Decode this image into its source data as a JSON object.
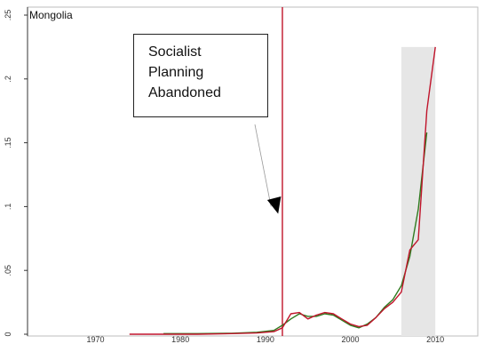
{
  "chart_data": {
    "type": "line",
    "title": "Mongolia",
    "xlabel": "",
    "ylabel": "",
    "xlim": [
      1962,
      2015
    ],
    "ylim": [
      0,
      0.25
    ],
    "x_ticks": [
      1970,
      1980,
      1990,
      2000,
      2010
    ],
    "y_ticks": [
      0,
      0.05,
      0.1,
      0.15,
      0.2,
      0.25
    ],
    "y_tick_labels": [
      "0",
      ".05",
      ".1",
      ".15",
      ".2",
      ".25"
    ],
    "grid": false,
    "legend": "none",
    "vertical_line": {
      "x": 1992,
      "color": "#c0142b"
    },
    "shaded_region": {
      "x_start": 2006,
      "x_end": 2010,
      "y_top": 0.225,
      "color": "#e6e6e6"
    },
    "annotation": {
      "lines": [
        "Socialist",
        "Planning",
        "Abandoned"
      ],
      "arrow_to": {
        "x": 1991.5,
        "y": 0.132
      }
    },
    "series": [
      {
        "color": "#c0142b",
        "x": [
          1974,
          1978,
          1982,
          1986,
          1989,
          1991,
          1992,
          1993,
          1994,
          1995,
          1996,
          1997,
          1998,
          1999,
          2000,
          2001,
          2002,
          2003,
          2004,
          2005,
          2006,
          2007,
          2008,
          2009,
          2010
        ],
        "y": [
          0.0,
          0.0,
          0.0,
          0.0005,
          0.001,
          0.002,
          0.005,
          0.016,
          0.017,
          0.012,
          0.015,
          0.017,
          0.016,
          0.012,
          0.008,
          0.006,
          0.007,
          0.013,
          0.02,
          0.025,
          0.033,
          0.066,
          0.074,
          0.175,
          0.225
        ]
      },
      {
        "color": "#2f7a1f",
        "x": [
          1978,
          1982,
          1986,
          1989,
          1991,
          1992,
          1993,
          1994,
          1995,
          1996,
          1997,
          1998,
          1999,
          2000,
          2001,
          2002,
          2003,
          2004,
          2005,
          2006,
          2007,
          2008,
          2009
        ],
        "y": [
          0.0005,
          0.0005,
          0.0008,
          0.0015,
          0.003,
          0.007,
          0.012,
          0.016,
          0.014,
          0.014,
          0.016,
          0.015,
          0.011,
          0.007,
          0.005,
          0.008,
          0.013,
          0.021,
          0.027,
          0.038,
          0.061,
          0.098,
          0.158
        ]
      }
    ]
  }
}
